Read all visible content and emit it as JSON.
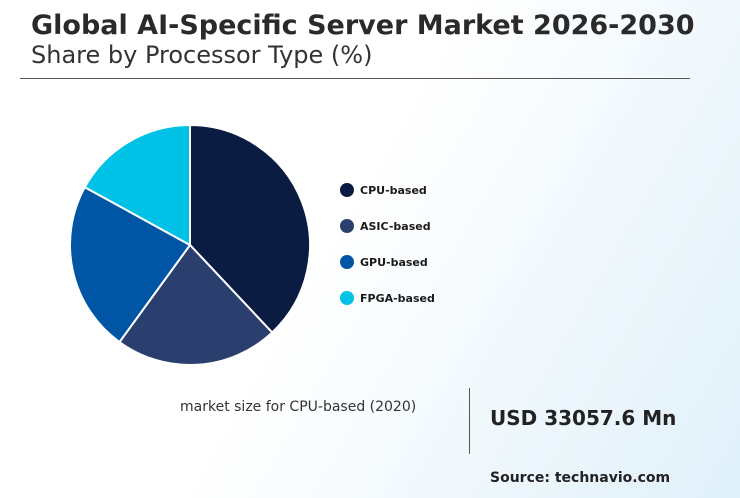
{
  "header": {
    "title": "Global AI-Specific Server Market 2026-2030",
    "subtitle": "Share by Processor Type (%)"
  },
  "chart_data": {
    "type": "pie",
    "categories": [
      "CPU-based",
      "ASIC-based",
      "GPU-based",
      "FPGA-based"
    ],
    "values": [
      38,
      22,
      23,
      17
    ],
    "colors": [
      "#0b1c42",
      "#2a3f6e",
      "#0055a4",
      "#00c2e6"
    ],
    "legend_position": "right"
  },
  "kpi": {
    "label": "market size for CPU-based (2020)",
    "value": "USD 33057.6 Mn"
  },
  "footer": {
    "source": "Source: technavio.com"
  }
}
